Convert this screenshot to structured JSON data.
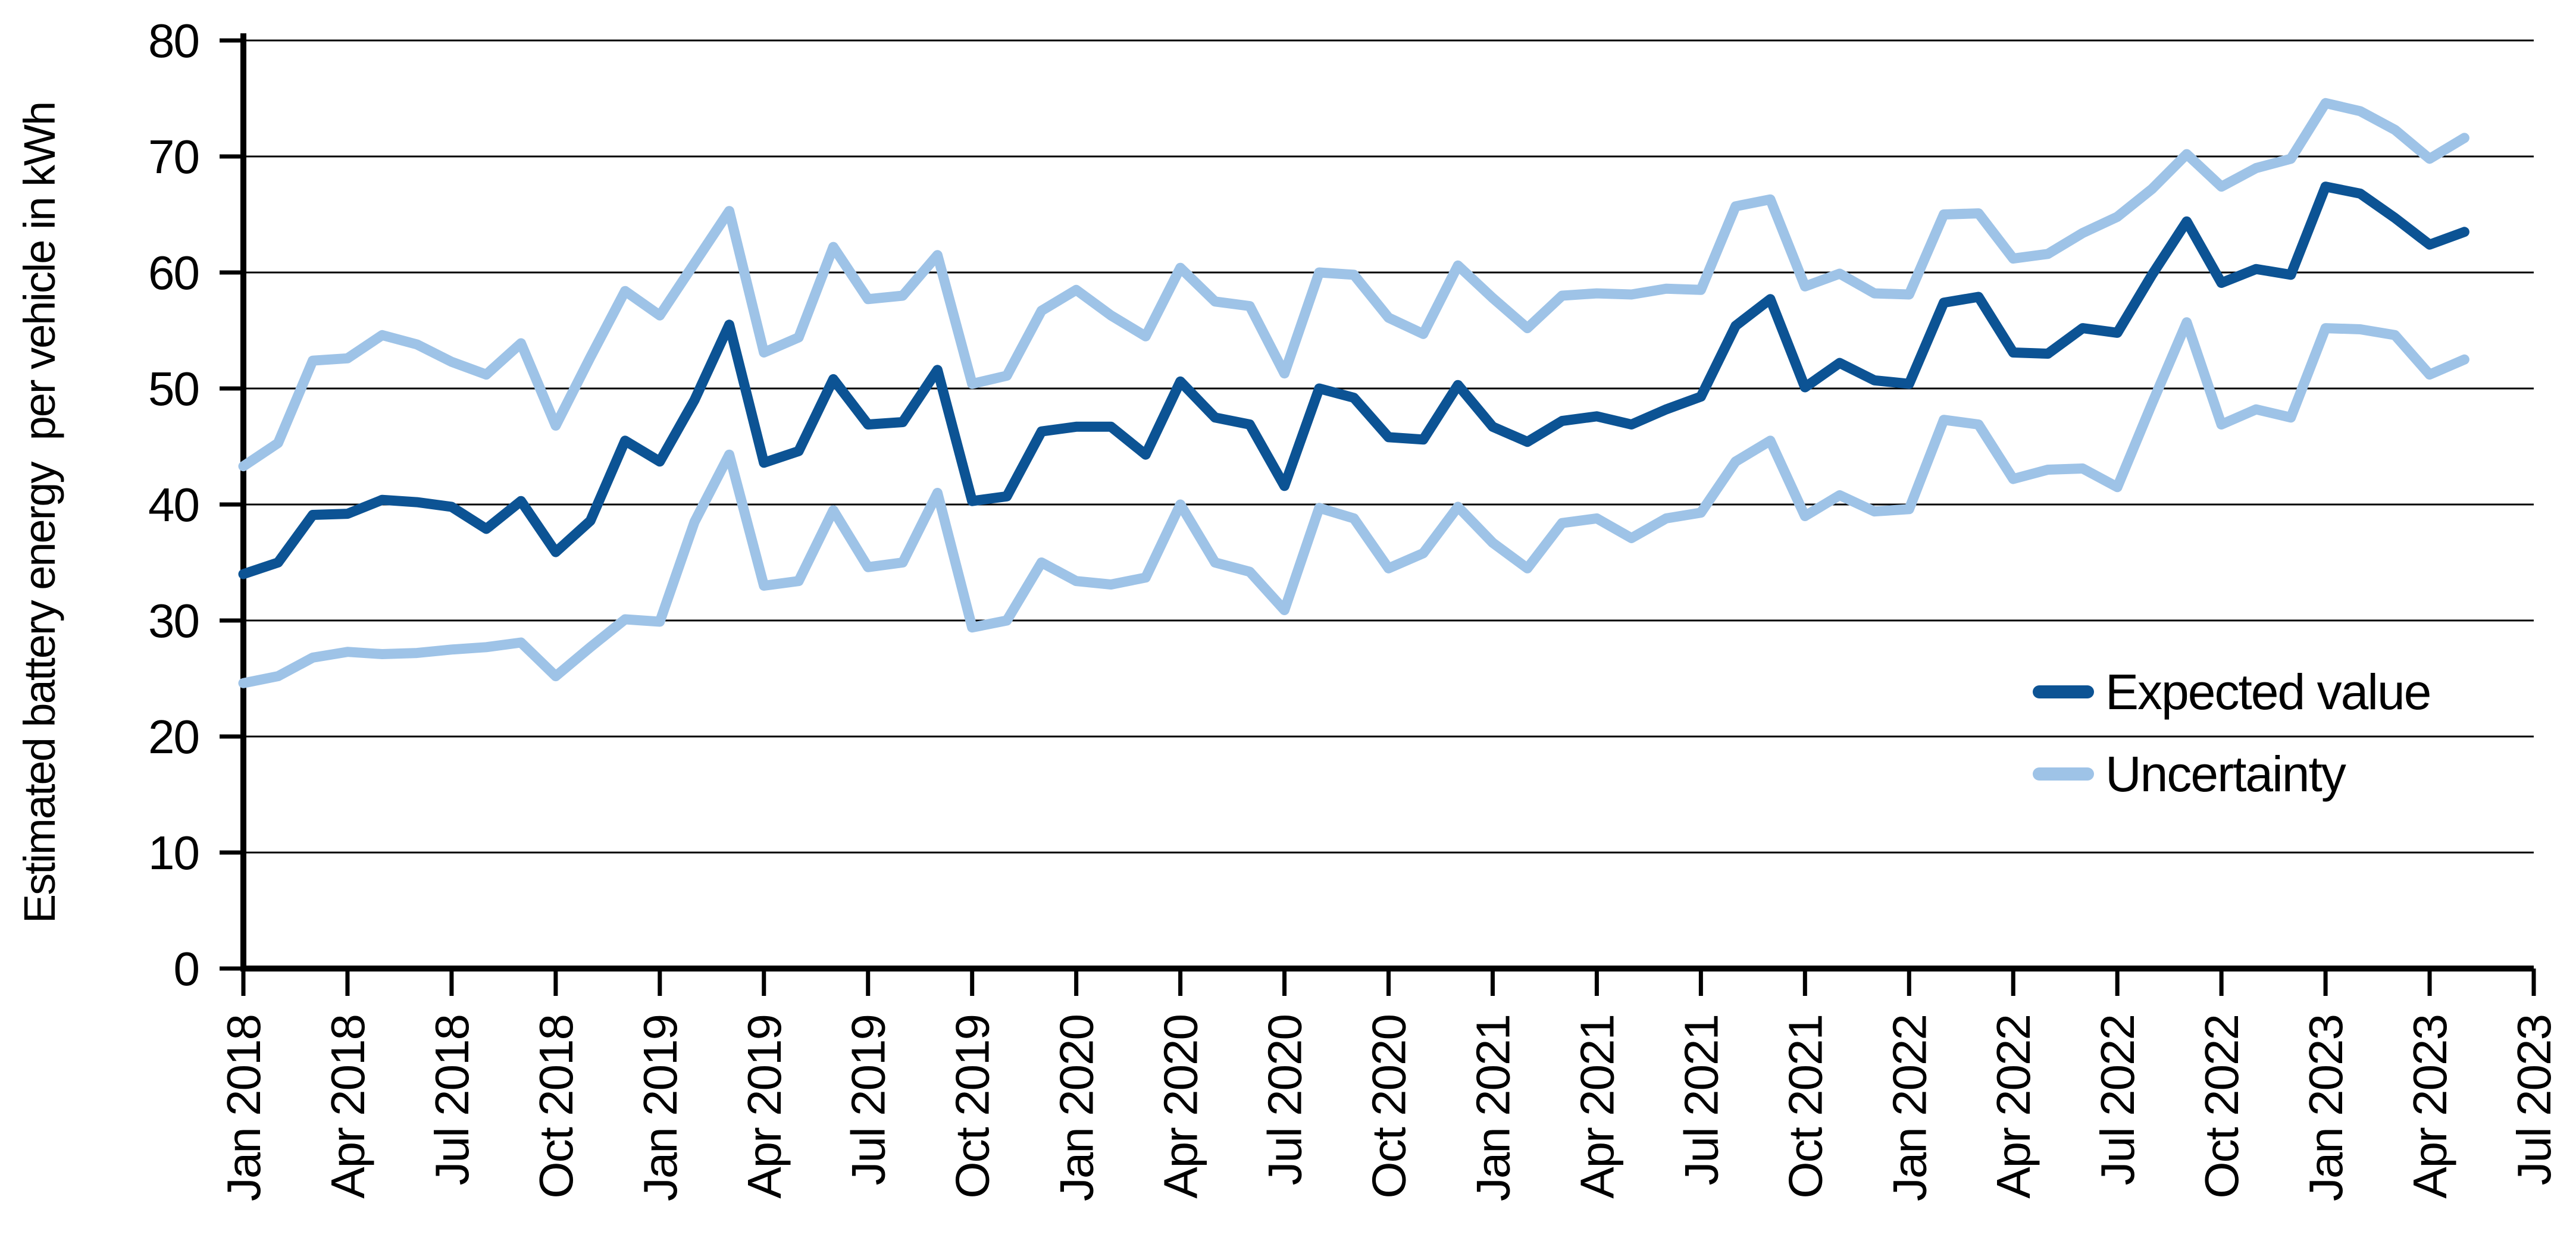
{
  "chart_data": {
    "type": "line",
    "title": "",
    "xlabel": "",
    "ylabel": "Estimated battery energy  per vehicle in kWh",
    "ylim": [
      0,
      80
    ],
    "ytick_step": 10,
    "ytick_labels": [
      "0",
      "10",
      "20",
      "30",
      "40",
      "50",
      "60",
      "70",
      "80"
    ],
    "grid": true,
    "grid_color": "#000000",
    "axis_color": "#000000",
    "background_color": "#ffffff",
    "x_domain_start": "Jan 2018",
    "x_domain_end": "Jul 2023",
    "x_months_total": 66,
    "x_data_start": "Jan 2018",
    "x_data_end": "May 2023",
    "xtick_every_months": 3,
    "xtick_labels": [
      "Jan 2018",
      "Apr 2018",
      "Jul 2018",
      "Oct 2018",
      "Jan 2019",
      "Apr 2019",
      "Jul 2019",
      "Oct 2019",
      "Jan 2020",
      "Apr 2020",
      "Jul 2020",
      "Oct 2020",
      "Jan 2021",
      "Apr 2021",
      "Jul 2021",
      "Oct 2021",
      "Jan 2022",
      "Apr 2022",
      "Jul 2022",
      "Oct 2022",
      "Jan 2023",
      "Apr 2023",
      "Jul 2023"
    ],
    "series": [
      {
        "name": "Uncertainty upper bound",
        "legend": "Uncertainty",
        "color": "#9EC3E7",
        "values": [
          43.3,
          45.3,
          52.4,
          52.6,
          54.6,
          53.8,
          52.3,
          51.2,
          53.9,
          46.8,
          52.7,
          58.4,
          56.3,
          60.8,
          65.3,
          53.1,
          54.4,
          62.2,
          57.7,
          58,
          61.5,
          50.4,
          51.1,
          56.7,
          58.5,
          56.3,
          54.5,
          60.4,
          57.5,
          57.1,
          51.3,
          60,
          59.8,
          56.1,
          54.7,
          60.6,
          57.8,
          55.2,
          58,
          58.2,
          58.1,
          58.6,
          58.5,
          65.7,
          66.3,
          58.8,
          59.9,
          58.2,
          58.1,
          65,
          65.1,
          61.2,
          61.6,
          63.4,
          64.8,
          67.2,
          70.2,
          67.4,
          69,
          69.8,
          74.6,
          73.9,
          72.3,
          69.8,
          71.6
        ]
      },
      {
        "name": "Uncertainty lower bound",
        "legend": "Uncertainty",
        "color": "#9EC3E7",
        "values": [
          24.6,
          25.2,
          26.8,
          27.3,
          27.1,
          27.2,
          27.5,
          27.7,
          28.1,
          25.2,
          27.7,
          30.1,
          29.9,
          38.5,
          44.3,
          33,
          33.4,
          39.5,
          34.6,
          35,
          41,
          29.4,
          30,
          35,
          33.4,
          33.1,
          33.7,
          40,
          35,
          34.2,
          30.9,
          39.7,
          38.8,
          34.5,
          35.8,
          39.8,
          36.7,
          34.5,
          38.4,
          38.8,
          37.1,
          38.8,
          39.3,
          43.7,
          45.5,
          39,
          40.8,
          39.4,
          39.6,
          47.3,
          46.9,
          42.2,
          43,
          43.1,
          41.5,
          48.7,
          55.7,
          46.9,
          48.2,
          47.5,
          55.2,
          55.1,
          54.6,
          51.2,
          52.5
        ]
      },
      {
        "name": "Expected value",
        "legend": "Expected value",
        "color": "#0C5394",
        "values": [
          34,
          35,
          39.1,
          39.2,
          40.4,
          40.2,
          39.8,
          37.9,
          40.3,
          35.9,
          38.6,
          45.5,
          43.7,
          49,
          55.5,
          43.6,
          44.6,
          50.8,
          46.9,
          47.1,
          51.6,
          40.3,
          40.7,
          46.3,
          46.7,
          46.7,
          44.3,
          50.6,
          47.5,
          46.9,
          41.6,
          50,
          49.2,
          45.8,
          45.6,
          50.3,
          46.7,
          45.4,
          47.2,
          47.6,
          46.9,
          48.2,
          49.3,
          55.4,
          57.7,
          50.1,
          52.2,
          50.7,
          50.4,
          57.4,
          57.9,
          53.1,
          53,
          55.2,
          54.8,
          59.8,
          64.4,
          59.1,
          60.3,
          59.8,
          67.4,
          66.8,
          64.7,
          62.4,
          63.5
        ]
      }
    ],
    "legend": {
      "position": "inside-right",
      "entries": [
        {
          "label": "Expected value",
          "color": "#0C5394"
        },
        {
          "label": "Uncertainty",
          "color": "#9EC3E7"
        }
      ]
    }
  }
}
